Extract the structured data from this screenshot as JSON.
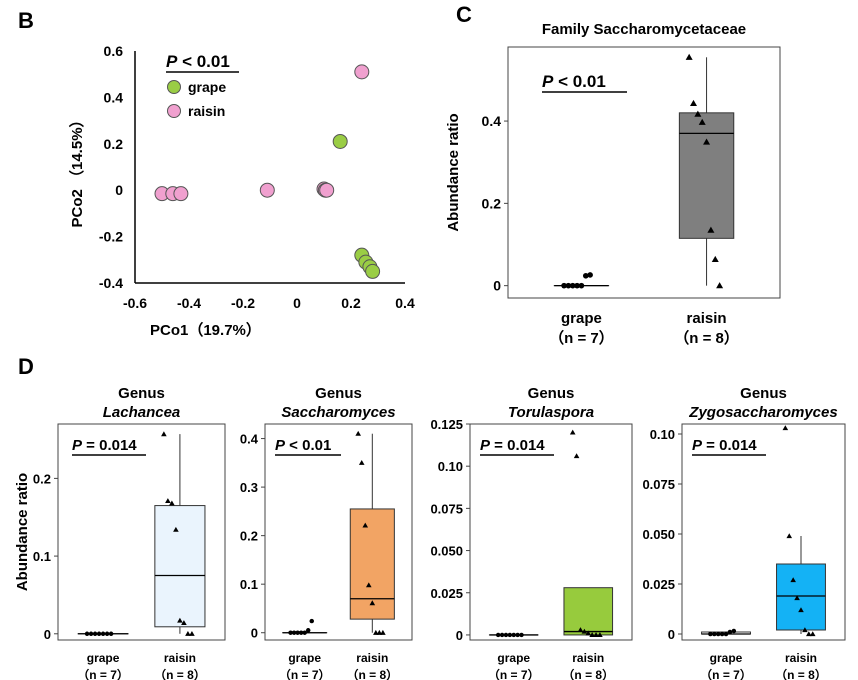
{
  "figure": {
    "panel_b": "B",
    "panel_c": "C",
    "panel_d": "D",
    "colors": {
      "grape": "#9acd45",
      "raisin": "#f0a0cf",
      "c_box": "#7f7f7f",
      "lachancea": "#eaf4fd",
      "saccharomyces": "#f2a464",
      "torulaspora": "#97cb3d",
      "zygosaccharomyces": "#14b2f5"
    }
  },
  "chart_data": [
    {
      "id": "B",
      "type": "scatter",
      "title": "",
      "xlabel": "PCo1（19.7%）",
      "ylabel": "PCo2 （14.5%）",
      "xlim": [
        -0.6,
        0.4
      ],
      "ylim": [
        -0.4,
        0.6
      ],
      "xticks": [
        "-0.6",
        "-0.4",
        "-0.2",
        "0",
        "0.2",
        "0.4"
      ],
      "yticks": [
        "0.6",
        "0.4",
        "0.2",
        "0",
        "-0.2",
        "-0.4"
      ],
      "annotation": {
        "p": "P",
        "rest": " < 0.01"
      },
      "legend": [
        "grape",
        "raisin"
      ],
      "series": [
        {
          "name": "grape",
          "points": [
            [
              0.16,
              0.21
            ],
            [
              0.24,
              -0.28
            ],
            [
              0.255,
              -0.31
            ],
            [
              0.27,
              -0.33
            ],
            [
              0.28,
              -0.35
            ]
          ]
        },
        {
          "name": "raisin",
          "points": [
            [
              0.24,
              0.51
            ],
            [
              -0.5,
              -0.015
            ],
            [
              -0.46,
              -0.015
            ],
            [
              -0.43,
              -0.015
            ],
            [
              -0.11,
              0.0
            ],
            [
              0.1,
              0.005
            ],
            [
              0.105,
              0.0
            ],
            [
              0.11,
              0.0
            ]
          ]
        }
      ]
    },
    {
      "id": "C",
      "type": "box",
      "title": "Family Saccharomycetaceae",
      "ylabel": "Abundance ratio",
      "ylim": [
        -0.03,
        0.58
      ],
      "yticks": [
        "0.4",
        "0.2",
        "0"
      ],
      "annotation": {
        "p": "P",
        "rest": " < 0.01"
      },
      "categories": [
        {
          "label": "grape",
          "n": "（n = 7）"
        },
        {
          "label": "raisin",
          "n": "（n = 8）"
        }
      ],
      "boxes": [
        {
          "q1": 0.0,
          "median": 0.0,
          "q3": 0.0,
          "min": 0.0,
          "max": 0.0,
          "points": [
            0.0,
            0.0,
            0.0,
            0.0,
            0.0,
            0.024,
            0.026
          ]
        },
        {
          "q1": 0.115,
          "median": 0.37,
          "q3": 0.42,
          "min": 0.0,
          "max": 0.555,
          "points": [
            0.555,
            0.443,
            0.417,
            0.397,
            0.349,
            0.135,
            0.064,
            0.0
          ]
        }
      ]
    },
    {
      "id": "D1",
      "type": "box",
      "genus": "Genus",
      "title": "Lachancea",
      "ylabel": "Abundance ratio",
      "ylim": [
        -0.008,
        0.27
      ],
      "yticks": [
        "0.2",
        "0.1",
        "0"
      ],
      "annotation": {
        "p": "P",
        "rest": " = 0.014"
      },
      "categories": [
        {
          "label": "grape",
          "n": "（n = 7）"
        },
        {
          "label": "raisin",
          "n": "（n = 8）"
        }
      ],
      "boxes": [
        {
          "q1": 0.0,
          "median": 0.0,
          "q3": 0.0,
          "min": 0.0,
          "max": 0.0,
          "points": [
            0.0,
            0.0,
            0.0,
            0.0,
            0.0,
            0.0,
            0.0
          ]
        },
        {
          "q1": 0.009,
          "median": 0.075,
          "q3": 0.165,
          "min": 0.0,
          "max": 0.257,
          "points": [
            0.257,
            0.171,
            0.168,
            0.134,
            0.017,
            0.014,
            0.0,
            0.0
          ]
        }
      ]
    },
    {
      "id": "D2",
      "type": "box",
      "genus": "Genus",
      "title": "Saccharomyces",
      "ylabel": "",
      "ylim": [
        -0.015,
        0.43
      ],
      "yticks": [
        "0.4",
        "0.3",
        "0.2",
        "0.1",
        "0"
      ],
      "annotation": {
        "p": "P",
        "rest": " < 0.01"
      },
      "categories": [
        {
          "label": "grape",
          "n": "（n = 7）"
        },
        {
          "label": "raisin",
          "n": "（n = 8）"
        }
      ],
      "boxes": [
        {
          "q1": 0.0,
          "median": 0.0,
          "q3": 0.0,
          "min": 0.0,
          "max": 0.0,
          "points": [
            0.0,
            0.0,
            0.0,
            0.0,
            0.0,
            0.005,
            0.024
          ]
        },
        {
          "q1": 0.028,
          "median": 0.07,
          "q3": 0.255,
          "min": 0.0,
          "max": 0.41,
          "points": [
            0.41,
            0.35,
            0.221,
            0.098,
            0.061,
            0.0,
            0.0,
            0.0
          ]
        }
      ]
    },
    {
      "id": "D3",
      "type": "box",
      "genus": "Genus",
      "title": "Torulaspora",
      "ylabel": "",
      "ylim": [
        -0.003,
        0.125
      ],
      "yticks": [
        "0.125",
        "0.10",
        "0.075",
        "0.050",
        "0.025",
        "0"
      ],
      "annotation": {
        "p": "P",
        "rest": " = 0.014"
      },
      "categories": [
        {
          "label": "grape",
          "n": "（n = 7）"
        },
        {
          "label": "raisin",
          "n": "（n = 8）"
        }
      ],
      "boxes": [
        {
          "q1": 0.0,
          "median": 0.0,
          "q3": 0.0,
          "min": 0.0,
          "max": 0.0,
          "points": [
            0.0,
            0.0,
            0.0,
            0.0,
            0.0,
            0.0,
            0.0
          ]
        },
        {
          "q1": 0.0,
          "median": 0.002,
          "q3": 0.028,
          "min": 0.0,
          "max": 0.028,
          "points": [
            0.12,
            0.106,
            0.003,
            0.002,
            0.001,
            0.0,
            0.0,
            0.0
          ]
        }
      ]
    },
    {
      "id": "D4",
      "type": "box",
      "genus": "Genus",
      "title": "Zygosaccharomyces",
      "ylabel": "",
      "ylim": [
        -0.003,
        0.105
      ],
      "yticks": [
        "0.10",
        "0.075",
        "0.050",
        "0.025",
        "0"
      ],
      "annotation": {
        "p": "P",
        "rest": " = 0.014"
      },
      "categories": [
        {
          "label": "grape",
          "n": "（n = 7）"
        },
        {
          "label": "raisin",
          "n": "（n = 8）"
        }
      ],
      "boxes": [
        {
          "q1": 0.0,
          "median": 0.0,
          "q3": 0.001,
          "min": 0.0,
          "max": 0.001,
          "points": [
            0.0,
            0.0,
            0.0,
            0.0,
            0.0,
            0.001,
            0.0015
          ]
        },
        {
          "q1": 0.002,
          "median": 0.019,
          "q3": 0.035,
          "min": 0.0,
          "max": 0.049,
          "points": [
            0.103,
            0.049,
            0.027,
            0.018,
            0.012,
            0.002,
            0.0,
            0.0
          ]
        }
      ]
    }
  ]
}
